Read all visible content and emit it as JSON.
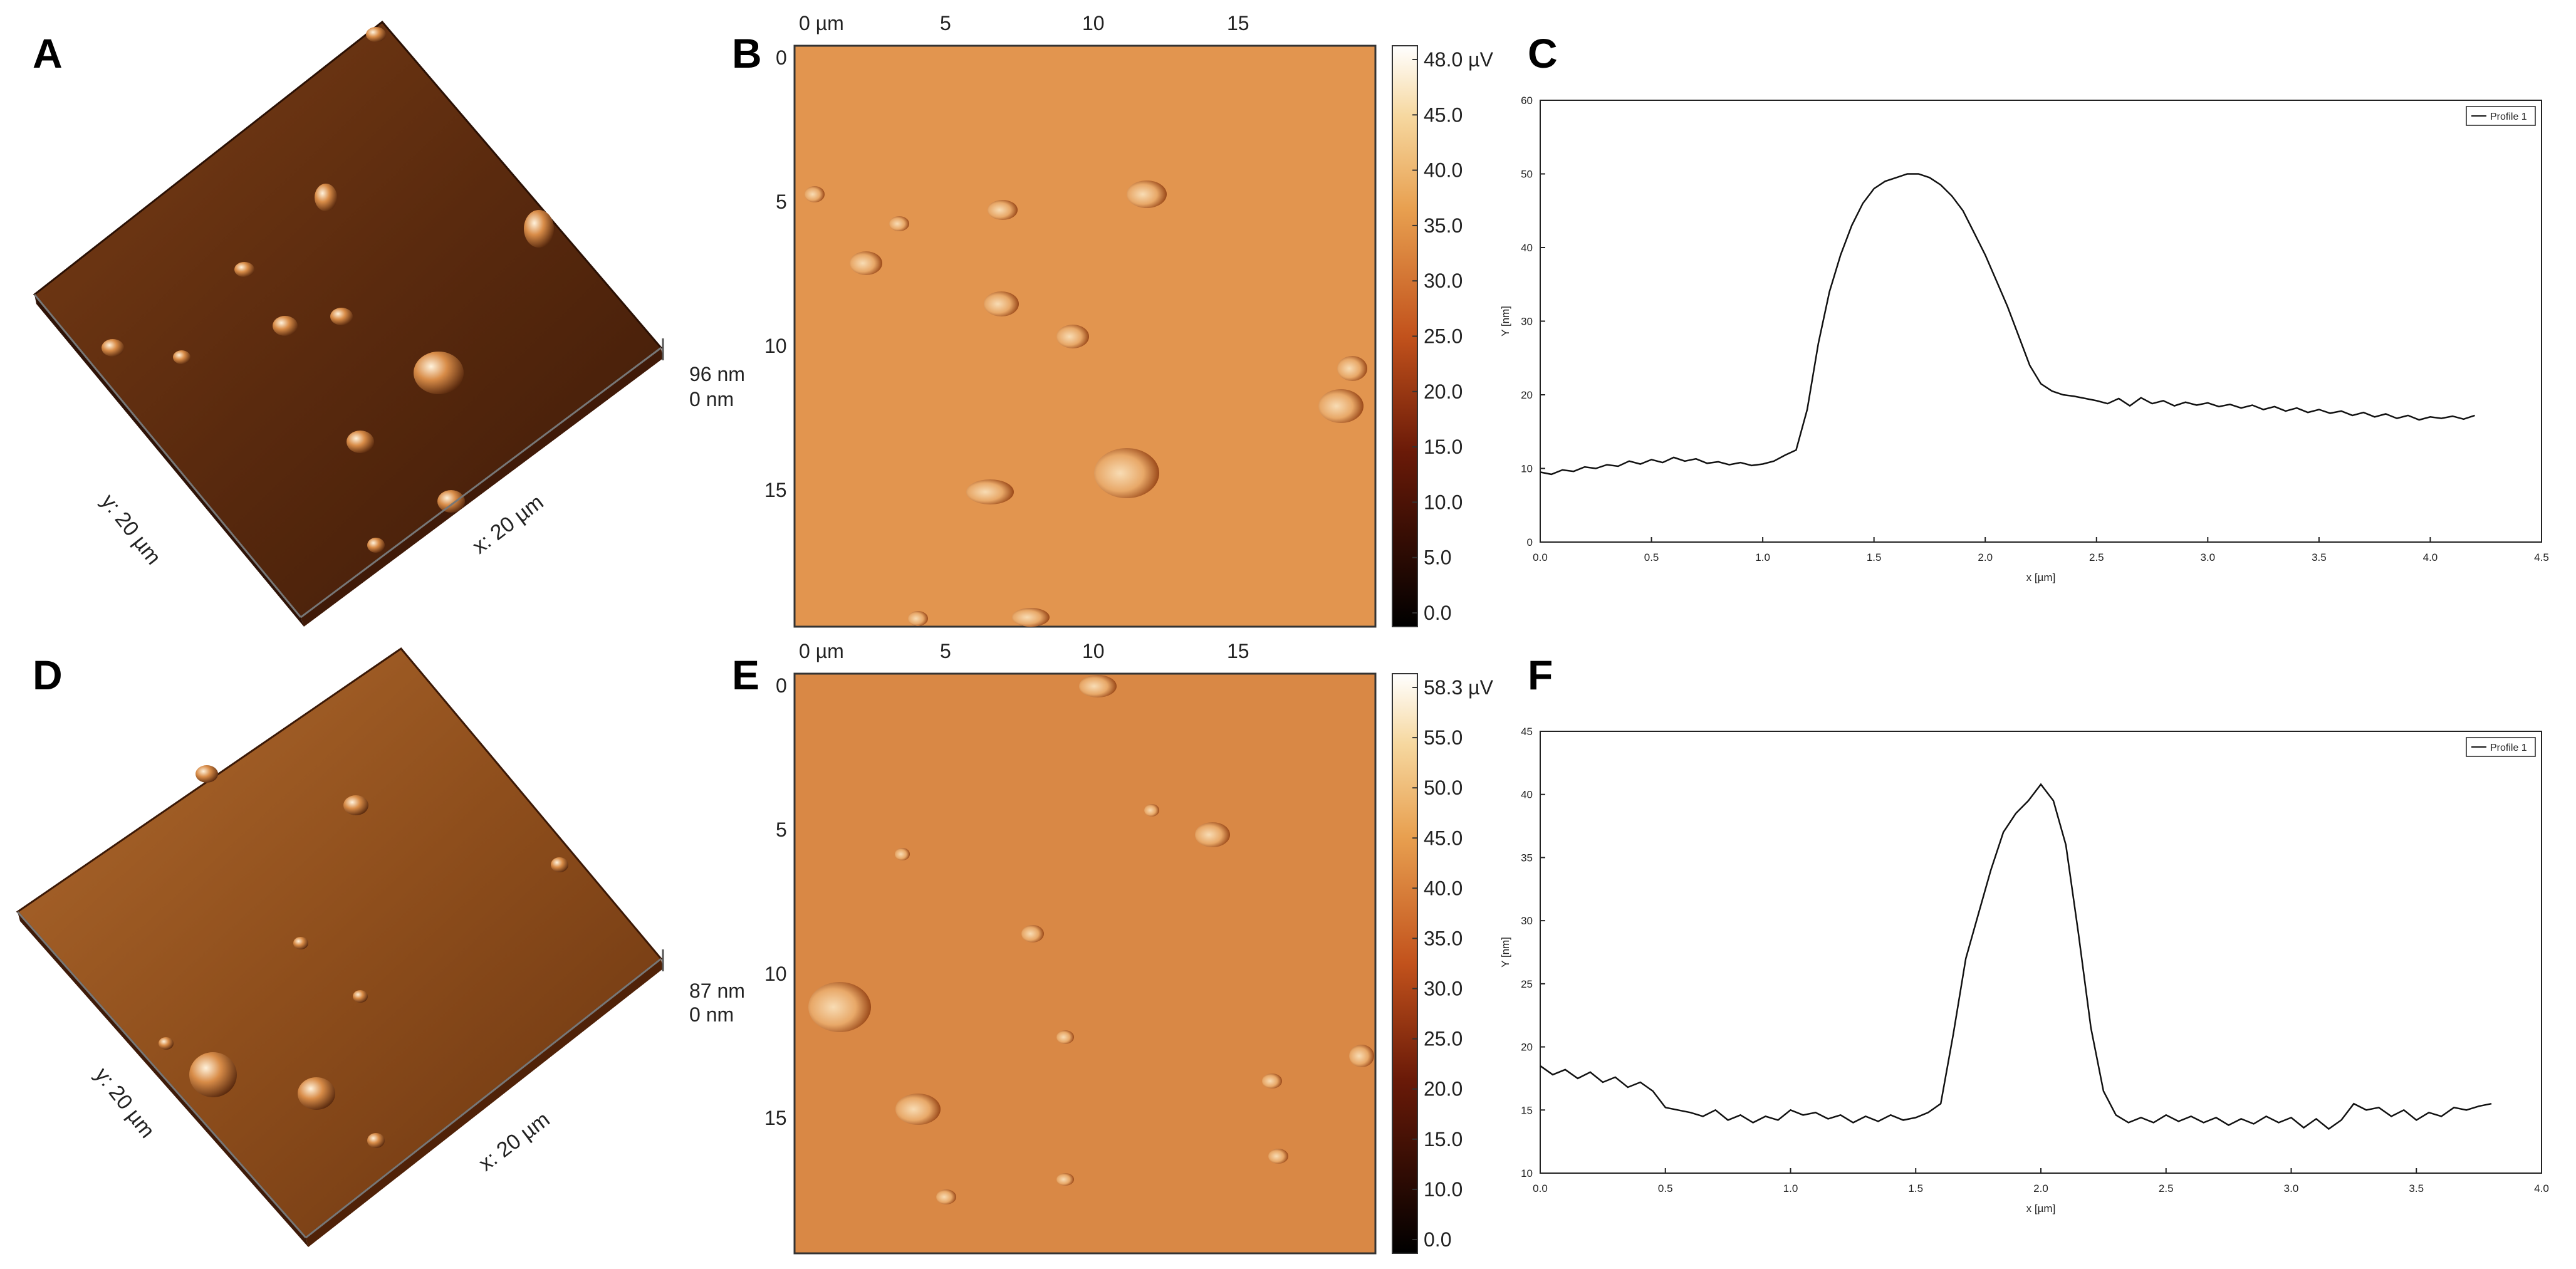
{
  "figure": {
    "panel_labels": [
      "A",
      "B",
      "C",
      "D",
      "E",
      "F"
    ],
    "colors": {
      "afm_dark": "#3a1808",
      "afm_mid": "#8a4a1e",
      "afm_light": "#e09a50",
      "phase_bg": "#e2954f",
      "line": "#111111",
      "axis": "#222222"
    }
  },
  "panel_a": {
    "z_max": "96 nm",
    "z_min": "0 nm",
    "y_label": "y: 20 µm",
    "x_label": "x: 20 µm"
  },
  "panel_d": {
    "z_max": "87 nm",
    "z_min": "0 nm",
    "y_label": "y: 20 µm",
    "x_label": "x: 20 µm"
  },
  "panel_b": {
    "top_ticks": [
      "0 µm",
      "5",
      "10",
      "15"
    ],
    "left_ticks": [
      "0",
      "5",
      "10",
      "15"
    ],
    "colorbar_ticks": [
      "48.0 µV",
      "45.0",
      "40.0",
      "35.0",
      "30.0",
      "25.0",
      "20.0",
      "15.0",
      "10.0",
      "5.0",
      "0.0"
    ]
  },
  "panel_e": {
    "top_ticks": [
      "0 µm",
      "5",
      "10",
      "15"
    ],
    "left_ticks": [
      "0",
      "5",
      "10",
      "15"
    ],
    "colorbar_ticks": [
      "58.3 µV",
      "55.0",
      "50.0",
      "45.0",
      "40.0",
      "35.0",
      "30.0",
      "25.0",
      "20.0",
      "15.0",
      "10.0",
      "0.0"
    ]
  },
  "chart_data": [
    {
      "panel": "C",
      "type": "line",
      "xlabel": "x [µm]",
      "ylabel": "Y [nm]",
      "xlim": [
        0,
        4.5
      ],
      "ylim": [
        0,
        60
      ],
      "xticks": [
        "0.0",
        "0.5",
        "1.0",
        "1.5",
        "2.0",
        "2.5",
        "3.0",
        "3.5",
        "4.0",
        "4.5"
      ],
      "yticks": [
        "0",
        "10",
        "20",
        "30",
        "40",
        "50",
        "60"
      ],
      "legend": "Profile 1",
      "series": [
        {
          "name": "Profile 1",
          "x": [
            0.0,
            0.05,
            0.1,
            0.15,
            0.2,
            0.25,
            0.3,
            0.35,
            0.4,
            0.45,
            0.5,
            0.55,
            0.6,
            0.65,
            0.7,
            0.75,
            0.8,
            0.85,
            0.9,
            0.95,
            1.0,
            1.05,
            1.1,
            1.15,
            1.2,
            1.25,
            1.3,
            1.35,
            1.4,
            1.45,
            1.5,
            1.55,
            1.6,
            1.65,
            1.7,
            1.75,
            1.8,
            1.85,
            1.9,
            1.95,
            2.0,
            2.05,
            2.1,
            2.15,
            2.2,
            2.25,
            2.3,
            2.35,
            2.4,
            2.45,
            2.5,
            2.55,
            2.6,
            2.65,
            2.7,
            2.75,
            2.8,
            2.85,
            2.9,
            2.95,
            3.0,
            3.05,
            3.1,
            3.15,
            3.2,
            3.25,
            3.3,
            3.35,
            3.4,
            3.45,
            3.5,
            3.55,
            3.6,
            3.65,
            3.7,
            3.75,
            3.8,
            3.85,
            3.9,
            3.95,
            4.0,
            4.05,
            4.1,
            4.15,
            4.2
          ],
          "y": [
            9.5,
            9.2,
            9.8,
            9.6,
            10.2,
            10.0,
            10.5,
            10.3,
            11.0,
            10.6,
            11.2,
            10.8,
            11.5,
            11.0,
            11.3,
            10.7,
            10.9,
            10.5,
            10.8,
            10.4,
            10.6,
            11.0,
            11.8,
            12.5,
            18.0,
            27.0,
            34.0,
            39.0,
            43.0,
            46.0,
            48.0,
            49.0,
            49.5,
            50.0,
            50.0,
            49.5,
            48.5,
            47.0,
            45.0,
            42.0,
            39.0,
            35.5,
            32.0,
            28.0,
            24.0,
            21.5,
            20.5,
            20.0,
            19.8,
            19.5,
            19.2,
            18.8,
            19.5,
            18.5,
            19.6,
            18.8,
            19.2,
            18.5,
            19.0,
            18.6,
            18.9,
            18.4,
            18.7,
            18.2,
            18.6,
            18.0,
            18.4,
            17.8,
            18.2,
            17.6,
            18.0,
            17.5,
            17.8,
            17.2,
            17.6,
            17.0,
            17.4,
            16.8,
            17.2,
            16.6,
            17.0,
            16.8,
            17.1,
            16.7,
            17.2
          ]
        }
      ]
    },
    {
      "panel": "F",
      "type": "line",
      "xlabel": "x [µm]",
      "ylabel": "Y [nm]",
      "xlim": [
        0,
        4.0
      ],
      "ylim": [
        10,
        45
      ],
      "xticks": [
        "0.0",
        "0.5",
        "1.0",
        "1.5",
        "2.0",
        "2.5",
        "3.0",
        "3.5",
        "4.0"
      ],
      "yticks": [
        "10",
        "15",
        "20",
        "25",
        "30",
        "35",
        "40",
        "45"
      ],
      "legend": "Profile 1",
      "series": [
        {
          "name": "Profile 1",
          "x": [
            0.0,
            0.05,
            0.1,
            0.15,
            0.2,
            0.25,
            0.3,
            0.35,
            0.4,
            0.45,
            0.5,
            0.55,
            0.6,
            0.65,
            0.7,
            0.75,
            0.8,
            0.85,
            0.9,
            0.95,
            1.0,
            1.05,
            1.1,
            1.15,
            1.2,
            1.25,
            1.3,
            1.35,
            1.4,
            1.45,
            1.5,
            1.55,
            1.6,
            1.65,
            1.7,
            1.75,
            1.8,
            1.85,
            1.9,
            1.95,
            2.0,
            2.05,
            2.1,
            2.15,
            2.2,
            2.25,
            2.3,
            2.35,
            2.4,
            2.45,
            2.5,
            2.55,
            2.6,
            2.65,
            2.7,
            2.75,
            2.8,
            2.85,
            2.9,
            2.95,
            3.0,
            3.05,
            3.1,
            3.15,
            3.2,
            3.25,
            3.3,
            3.35,
            3.4,
            3.45,
            3.5,
            3.55,
            3.6,
            3.65,
            3.7,
            3.75,
            3.8
          ],
          "y": [
            18.5,
            17.8,
            18.2,
            17.5,
            18.0,
            17.2,
            17.6,
            16.8,
            17.2,
            16.5,
            15.2,
            15.0,
            14.8,
            14.5,
            15.0,
            14.2,
            14.6,
            14.0,
            14.5,
            14.2,
            15.0,
            14.6,
            14.8,
            14.3,
            14.6,
            14.0,
            14.5,
            14.1,
            14.6,
            14.2,
            14.4,
            14.8,
            15.5,
            21.0,
            27.0,
            30.5,
            34.0,
            37.0,
            38.5,
            39.5,
            40.8,
            39.5,
            36.0,
            29.0,
            21.5,
            16.5,
            14.6,
            14.0,
            14.4,
            14.0,
            14.6,
            14.1,
            14.5,
            14.0,
            14.4,
            13.8,
            14.3,
            13.9,
            14.5,
            14.0,
            14.4,
            13.6,
            14.3,
            13.5,
            14.2,
            15.5,
            15.0,
            15.2,
            14.5,
            15.0,
            14.2,
            14.8,
            14.5,
            15.2,
            15.0,
            15.3,
            15.5
          ]
        }
      ]
    }
  ]
}
